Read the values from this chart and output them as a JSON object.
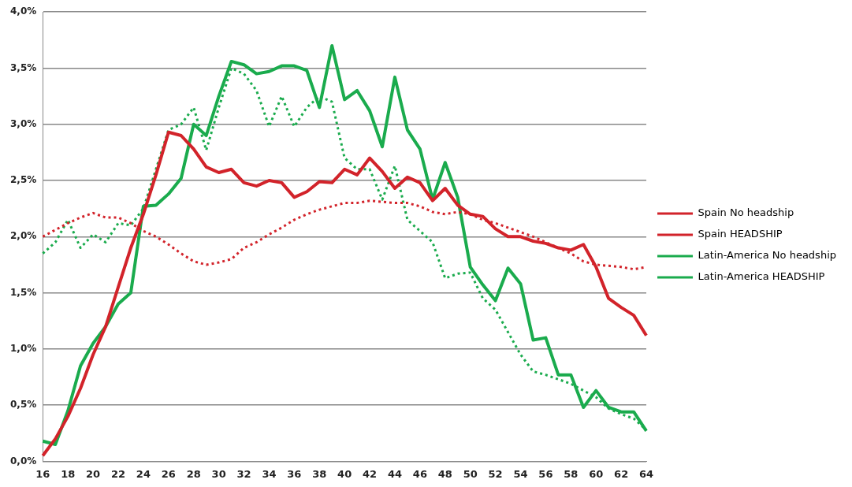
{
  "chart_data": {
    "type": "line",
    "categories": [
      "16",
      null,
      "18",
      null,
      "20",
      null,
      "22",
      null,
      "24",
      null,
      "26",
      null,
      "28",
      null,
      "30",
      null,
      "32",
      null,
      "34",
      null,
      "36",
      null,
      "38",
      null,
      "40",
      null,
      "42",
      null,
      "44",
      null,
      "46",
      null,
      "48",
      null,
      "50",
      null,
      "52",
      null,
      "54",
      null,
      "56",
      null,
      "58",
      null,
      "60",
      null,
      "62",
      null,
      "64"
    ],
    "series": [
      {
        "name": "Spain No headship",
        "color": "#d2232a",
        "line_style": "dotted",
        "values": [
          2.0,
          2.06,
          2.12,
          2.17,
          2.21,
          2.17,
          2.17,
          2.12,
          2.05,
          2.0,
          1.93,
          1.85,
          1.78,
          1.75,
          1.77,
          1.8,
          1.9,
          1.95,
          2.02,
          2.08,
          2.15,
          2.2,
          2.24,
          2.27,
          2.3,
          2.3,
          2.32,
          2.31,
          2.3,
          2.3,
          2.27,
          2.22,
          2.2,
          2.22,
          2.2,
          2.15,
          2.12,
          2.08,
          2.04,
          2.0,
          1.95,
          1.9,
          1.85,
          1.78,
          1.75,
          1.74,
          1.73,
          1.71,
          1.73
        ]
      },
      {
        "name": "Spain HEADSHIP",
        "color": "#d2232a",
        "line_style": "solid",
        "values": [
          0.05,
          0.2,
          0.4,
          0.65,
          0.95,
          1.2,
          1.55,
          1.9,
          2.2,
          2.55,
          2.93,
          2.9,
          2.78,
          2.62,
          2.57,
          2.6,
          2.48,
          2.45,
          2.5,
          2.48,
          2.35,
          2.4,
          2.49,
          2.48,
          2.6,
          2.55,
          2.7,
          2.58,
          2.43,
          2.53,
          2.48,
          2.32,
          2.43,
          2.28,
          2.2,
          2.18,
          2.07,
          2.0,
          2.0,
          1.96,
          1.94,
          1.9,
          1.88,
          1.93,
          1.73,
          1.45,
          1.37,
          1.3,
          1.12
        ]
      },
      {
        "name": "Latin-America No headship",
        "color": "#1aab4d",
        "line_style": "dotted",
        "values": [
          1.85,
          1.95,
          2.15,
          1.9,
          2.02,
          1.95,
          2.12,
          2.1,
          2.25,
          2.6,
          2.95,
          3.0,
          3.15,
          2.77,
          3.15,
          3.5,
          3.45,
          3.3,
          2.98,
          3.25,
          2.98,
          3.15,
          3.25,
          3.2,
          2.7,
          2.6,
          2.6,
          2.33,
          2.63,
          2.15,
          2.05,
          1.95,
          1.63,
          1.67,
          1.68,
          1.45,
          1.35,
          1.15,
          0.95,
          0.8,
          0.77,
          0.73,
          0.69,
          0.63,
          0.57,
          0.47,
          0.42,
          0.38,
          0.28
        ]
      },
      {
        "name": "Latin-America HEADSHIP",
        "color": "#1aab4d",
        "line_style": "solid",
        "values": [
          0.18,
          0.15,
          0.45,
          0.85,
          1.05,
          1.2,
          1.4,
          1.5,
          2.27,
          2.28,
          2.38,
          2.52,
          3.0,
          2.9,
          3.25,
          3.56,
          3.53,
          3.45,
          3.47,
          3.52,
          3.52,
          3.48,
          3.15,
          3.7,
          3.22,
          3.3,
          3.12,
          2.8,
          3.42,
          2.95,
          2.78,
          2.33,
          2.66,
          2.35,
          1.73,
          1.57,
          1.43,
          1.72,
          1.58,
          1.08,
          1.1,
          0.77,
          0.77,
          0.48,
          0.63,
          0.48,
          0.44,
          0.44,
          0.27
        ]
      }
    ],
    "ylim": [
      0,
      4
    ],
    "yticks": [
      {
        "value": 0,
        "label": "0,0%"
      },
      {
        "value": 0.5,
        "label": "0,5%"
      },
      {
        "value": 1,
        "label": "1,0%"
      },
      {
        "value": 1.5,
        "label": "1,5%"
      },
      {
        "value": 2,
        "label": "2,0%"
      },
      {
        "value": 2.5,
        "label": "2,5%"
      },
      {
        "value": 3,
        "label": "3,0%"
      },
      {
        "value": 3.5,
        "label": "3,5%"
      },
      {
        "value": 4,
        "label": "4,0%"
      }
    ],
    "grid": "y",
    "legend": "right",
    "marker": "none"
  }
}
